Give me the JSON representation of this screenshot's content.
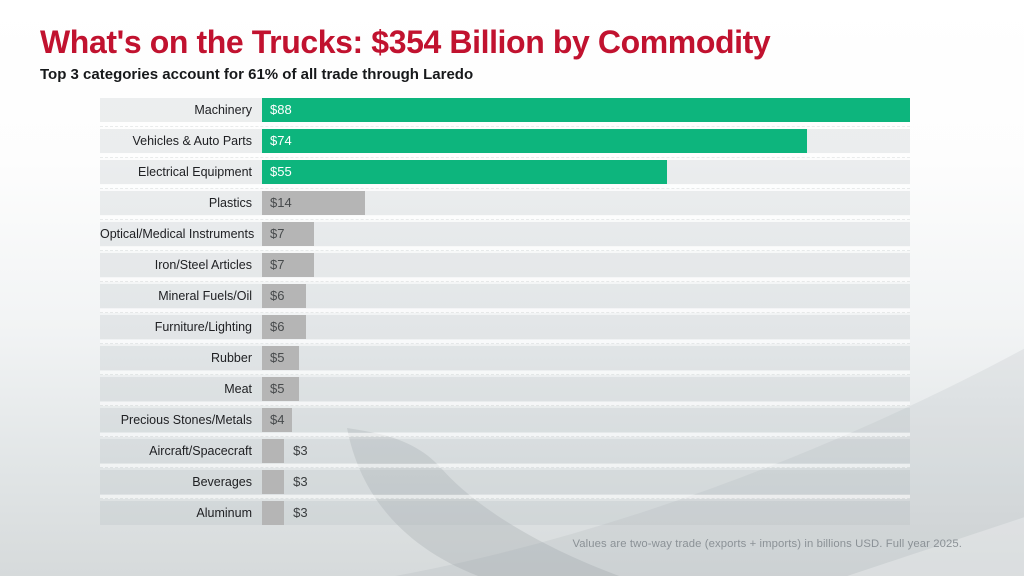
{
  "header": {
    "title": "What's on the Trucks: $354 Billion by Commodity",
    "subtitle": "Top 3 categories account for 61% of all trade through Laredo"
  },
  "chart_data": {
    "type": "bar",
    "orientation": "horizontal",
    "title": "What's on the Trucks: $354 Billion by Commodity",
    "subtitle": "Top 3 categories account for 61% of all trade through Laredo",
    "unit": "billions USD (two-way trade)",
    "categories": [
      "Machinery",
      "Vehicles & Auto Parts",
      "Electrical Equipment",
      "Plastics",
      "Optical/Medical Instruments",
      "Iron/Steel Articles",
      "Mineral Fuels/Oil",
      "Furniture/Lighting",
      "Rubber",
      "Meat",
      "Precious Stones/Metals",
      "Aircraft/Spacecraft",
      "Beverages",
      "Aluminum"
    ],
    "values": [
      88,
      74,
      55,
      14,
      7,
      7,
      6,
      6,
      5,
      5,
      4,
      3,
      3,
      3
    ],
    "value_labels": [
      "$88",
      "$74",
      "$55",
      "$14",
      "$7",
      "$7",
      "$6",
      "$6",
      "$5",
      "$5",
      "$4",
      "$3",
      "$3",
      "$3"
    ],
    "xlim": [
      0,
      88
    ],
    "grid": false,
    "legend": "none",
    "highlight_count": 3,
    "colors": {
      "highlight": "#0db57d",
      "default": "#b5b5b5",
      "track": "#eef0f1"
    }
  },
  "footer": {
    "note": "Values are two-way trade (exports + imports) in billions USD. Full year 2025."
  },
  "style_colors": {
    "title_red": "#c1122f",
    "swoosh_gray": "#8f979b"
  }
}
